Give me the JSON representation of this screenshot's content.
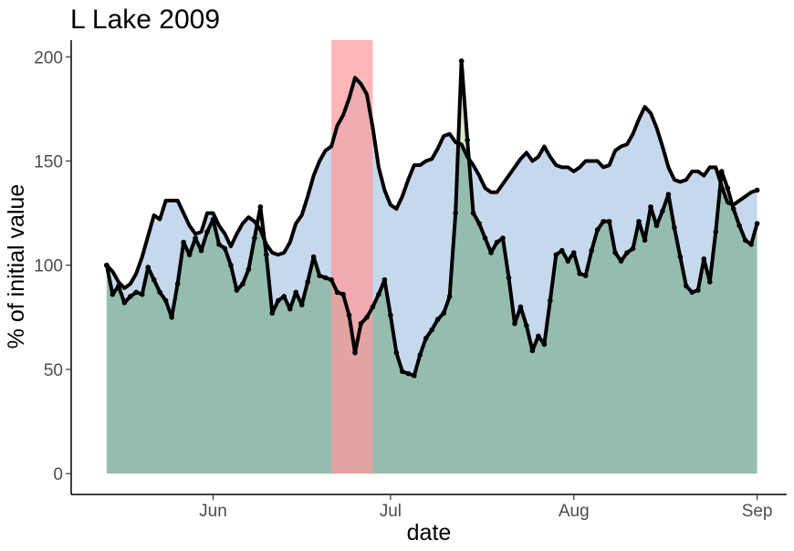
{
  "chart_data": {
    "type": "area",
    "title": "L Lake 2009",
    "xlabel": "date",
    "ylabel": "% of initial value",
    "x_ticks": [
      "Jun",
      "Jul",
      "Aug",
      "Sep"
    ],
    "y_ticks": [
      "0",
      "50",
      "100",
      "150",
      "200"
    ],
    "ylim": [
      -10,
      208
    ],
    "xlim": [
      "2009-05-08",
      "2009-09-06"
    ],
    "grid": false,
    "legend": "none",
    "highlight_period": {
      "start": "2009-06-21",
      "end": "2009-06-28"
    },
    "series": [
      {
        "values": [
          [
            "2009-05-14",
            100
          ],
          [
            "2009-05-15",
            97
          ],
          [
            "2009-05-16",
            92
          ],
          [
            "2009-05-17",
            89
          ],
          [
            "2009-05-18",
            91
          ],
          [
            "2009-05-19",
            96
          ],
          [
            "2009-05-20",
            104
          ],
          [
            "2009-05-21",
            114
          ],
          [
            "2009-05-22",
            124
          ],
          [
            "2009-05-23",
            122
          ],
          [
            "2009-05-24",
            131
          ],
          [
            "2009-05-25",
            131
          ],
          [
            "2009-05-26",
            131
          ],
          [
            "2009-05-27",
            125
          ],
          [
            "2009-05-28",
            119
          ],
          [
            "2009-05-29",
            115
          ],
          [
            "2009-05-30",
            116
          ],
          [
            "2009-05-31",
            125
          ],
          [
            "2009-06-01",
            125
          ],
          [
            "2009-06-02",
            119
          ],
          [
            "2009-06-03",
            115
          ],
          [
            "2009-06-04",
            109
          ],
          [
            "2009-06-05",
            115
          ],
          [
            "2009-06-06",
            120
          ],
          [
            "2009-06-07",
            123
          ],
          [
            "2009-06-08",
            121
          ],
          [
            "2009-06-09",
            117
          ],
          [
            "2009-06-10",
            110
          ],
          [
            "2009-06-11",
            106
          ],
          [
            "2009-06-12",
            105
          ],
          [
            "2009-06-13",
            106
          ],
          [
            "2009-06-14",
            111
          ],
          [
            "2009-06-15",
            120
          ],
          [
            "2009-06-16",
            124
          ],
          [
            "2009-06-17",
            133
          ],
          [
            "2009-06-18",
            143
          ],
          [
            "2009-06-19",
            150
          ],
          [
            "2009-06-20",
            155
          ],
          [
            "2009-06-21",
            157
          ],
          [
            "2009-06-22",
            167
          ],
          [
            "2009-06-23",
            172
          ],
          [
            "2009-06-24",
            180
          ],
          [
            "2009-06-25",
            190
          ],
          [
            "2009-06-26",
            187
          ],
          [
            "2009-06-27",
            182
          ],
          [
            "2009-06-28",
            166
          ],
          [
            "2009-06-29",
            147
          ],
          [
            "2009-06-30",
            136
          ],
          [
            "2009-07-01",
            129
          ],
          [
            "2009-07-02",
            127
          ],
          [
            "2009-07-03",
            133
          ],
          [
            "2009-07-04",
            141
          ],
          [
            "2009-07-05",
            148
          ],
          [
            "2009-07-06",
            148
          ],
          [
            "2009-07-07",
            150
          ],
          [
            "2009-07-08",
            151
          ],
          [
            "2009-07-09",
            156
          ],
          [
            "2009-07-10",
            162
          ],
          [
            "2009-07-11",
            163
          ],
          [
            "2009-07-12",
            159
          ],
          [
            "2009-07-13",
            158
          ],
          [
            "2009-07-14",
            152
          ],
          [
            "2009-07-15",
            148
          ],
          [
            "2009-07-16",
            143
          ],
          [
            "2009-07-17",
            137
          ],
          [
            "2009-07-18",
            135
          ],
          [
            "2009-07-19",
            135
          ],
          [
            "2009-07-20",
            139
          ],
          [
            "2009-07-21",
            143
          ],
          [
            "2009-07-22",
            147
          ],
          [
            "2009-07-23",
            151
          ],
          [
            "2009-07-24",
            154
          ],
          [
            "2009-07-25",
            150
          ],
          [
            "2009-07-26",
            152
          ],
          [
            "2009-07-27",
            157
          ],
          [
            "2009-07-28",
            152
          ],
          [
            "2009-07-29",
            148
          ],
          [
            "2009-07-30",
            147
          ],
          [
            "2009-07-31",
            147
          ],
          [
            "2009-08-01",
            145
          ],
          [
            "2009-08-02",
            147
          ],
          [
            "2009-08-03",
            150
          ],
          [
            "2009-08-04",
            150
          ],
          [
            "2009-08-05",
            150
          ],
          [
            "2009-08-06",
            147
          ],
          [
            "2009-08-07",
            148
          ],
          [
            "2009-08-08",
            155
          ],
          [
            "2009-08-09",
            157
          ],
          [
            "2009-08-10",
            158
          ],
          [
            "2009-08-11",
            163
          ],
          [
            "2009-08-12",
            170
          ],
          [
            "2009-08-13",
            176
          ],
          [
            "2009-08-14",
            173
          ],
          [
            "2009-08-15",
            166
          ],
          [
            "2009-08-16",
            157
          ],
          [
            "2009-08-17",
            147
          ],
          [
            "2009-08-18",
            141
          ],
          [
            "2009-08-19",
            140
          ],
          [
            "2009-08-20",
            141
          ],
          [
            "2009-08-21",
            145
          ],
          [
            "2009-08-22",
            145
          ],
          [
            "2009-08-23",
            143
          ],
          [
            "2009-08-24",
            147
          ],
          [
            "2009-08-25",
            147
          ],
          [
            "2009-08-26",
            138
          ],
          [
            "2009-08-27",
            130
          ],
          [
            "2009-08-28",
            129
          ],
          [
            "2009-08-29",
            131
          ],
          [
            "2009-08-30",
            133
          ],
          [
            "2009-08-31",
            135
          ],
          [
            "2009-09-01",
            136
          ]
        ],
        "color": "#000000",
        "fill": "#c6d8ec"
      },
      {
        "values": [
          [
            "2009-05-14",
            100
          ],
          [
            "2009-05-15",
            86
          ],
          [
            "2009-05-16",
            90
          ],
          [
            "2009-05-17",
            82
          ],
          [
            "2009-05-18",
            85
          ],
          [
            "2009-05-19",
            87
          ],
          [
            "2009-05-20",
            86
          ],
          [
            "2009-05-21",
            99
          ],
          [
            "2009-05-22",
            93
          ],
          [
            "2009-05-23",
            87
          ],
          [
            "2009-05-24",
            83
          ],
          [
            "2009-05-25",
            75
          ],
          [
            "2009-05-26",
            91
          ],
          [
            "2009-05-27",
            111
          ],
          [
            "2009-05-28",
            105
          ],
          [
            "2009-05-29",
            113
          ],
          [
            "2009-05-30",
            107
          ],
          [
            "2009-05-31",
            116
          ],
          [
            "2009-06-01",
            122
          ],
          [
            "2009-06-02",
            110
          ],
          [
            "2009-06-03",
            108
          ],
          [
            "2009-06-04",
            100
          ],
          [
            "2009-06-05",
            88
          ],
          [
            "2009-06-06",
            91
          ],
          [
            "2009-06-07",
            98
          ],
          [
            "2009-06-08",
            113
          ],
          [
            "2009-06-09",
            128
          ],
          [
            "2009-06-10",
            105
          ],
          [
            "2009-06-11",
            77
          ],
          [
            "2009-06-12",
            83
          ],
          [
            "2009-06-13",
            85
          ],
          [
            "2009-06-14",
            79
          ],
          [
            "2009-06-15",
            87
          ],
          [
            "2009-06-16",
            81
          ],
          [
            "2009-06-17",
            92
          ],
          [
            "2009-06-18",
            104
          ],
          [
            "2009-06-19",
            95
          ],
          [
            "2009-06-20",
            94
          ],
          [
            "2009-06-21",
            93
          ],
          [
            "2009-06-22",
            87
          ],
          [
            "2009-06-23",
            86
          ],
          [
            "2009-06-24",
            76
          ],
          [
            "2009-06-25",
            58
          ],
          [
            "2009-06-26",
            72
          ],
          [
            "2009-06-27",
            75
          ],
          [
            "2009-06-28",
            80
          ],
          [
            "2009-06-29",
            86
          ],
          [
            "2009-06-30",
            93
          ],
          [
            "2009-07-01",
            76
          ],
          [
            "2009-07-02",
            58
          ],
          [
            "2009-07-03",
            49
          ],
          [
            "2009-07-04",
            48
          ],
          [
            "2009-07-05",
            47
          ],
          [
            "2009-07-06",
            57
          ],
          [
            "2009-07-07",
            65
          ],
          [
            "2009-07-08",
            69
          ],
          [
            "2009-07-09",
            74
          ],
          [
            "2009-07-10",
            77
          ],
          [
            "2009-07-11",
            85
          ],
          [
            "2009-07-12",
            125
          ],
          [
            "2009-07-13",
            198
          ],
          [
            "2009-07-14",
            160
          ],
          [
            "2009-07-15",
            125
          ],
          [
            "2009-07-16",
            120
          ],
          [
            "2009-07-17",
            113
          ],
          [
            "2009-07-18",
            106
          ],
          [
            "2009-07-19",
            111
          ],
          [
            "2009-07-20",
            113
          ],
          [
            "2009-07-21",
            94
          ],
          [
            "2009-07-22",
            72
          ],
          [
            "2009-07-23",
            80
          ],
          [
            "2009-07-24",
            71
          ],
          [
            "2009-07-25",
            59
          ],
          [
            "2009-07-26",
            66
          ],
          [
            "2009-07-27",
            62
          ],
          [
            "2009-07-28",
            83
          ],
          [
            "2009-07-29",
            105
          ],
          [
            "2009-07-30",
            107
          ],
          [
            "2009-07-31",
            102
          ],
          [
            "2009-08-01",
            106
          ],
          [
            "2009-08-02",
            96
          ],
          [
            "2009-08-03",
            95
          ],
          [
            "2009-08-04",
            107
          ],
          [
            "2009-08-05",
            117
          ],
          [
            "2009-08-06",
            121
          ],
          [
            "2009-08-07",
            121
          ],
          [
            "2009-08-08",
            106
          ],
          [
            "2009-08-09",
            102
          ],
          [
            "2009-08-10",
            106
          ],
          [
            "2009-08-11",
            108
          ],
          [
            "2009-08-12",
            121
          ],
          [
            "2009-08-13",
            112
          ],
          [
            "2009-08-14",
            128
          ],
          [
            "2009-08-15",
            119
          ],
          [
            "2009-08-16",
            126
          ],
          [
            "2009-08-17",
            134
          ],
          [
            "2009-08-18",
            118
          ],
          [
            "2009-08-19",
            104
          ],
          [
            "2009-08-20",
            90
          ],
          [
            "2009-08-21",
            87
          ],
          [
            "2009-08-22",
            88
          ],
          [
            "2009-08-23",
            103
          ],
          [
            "2009-08-24",
            92
          ],
          [
            "2009-08-25",
            116
          ],
          [
            "2009-08-26",
            145
          ],
          [
            "2009-08-27",
            137
          ],
          [
            "2009-08-28",
            127
          ],
          [
            "2009-08-29",
            119
          ],
          [
            "2009-08-30",
            112
          ],
          [
            "2009-08-31",
            110
          ],
          [
            "2009-09-01",
            120
          ]
        ],
        "color": "#000000",
        "fill": "#94bdb0",
        "markers": true
      }
    ],
    "colors": {
      "series_1_fill": "#c6d8ec",
      "series_2_fill": "#94bdb0",
      "overlap_fill": "#d6e8cc",
      "highlight_fill": "#ff9a9a"
    }
  }
}
